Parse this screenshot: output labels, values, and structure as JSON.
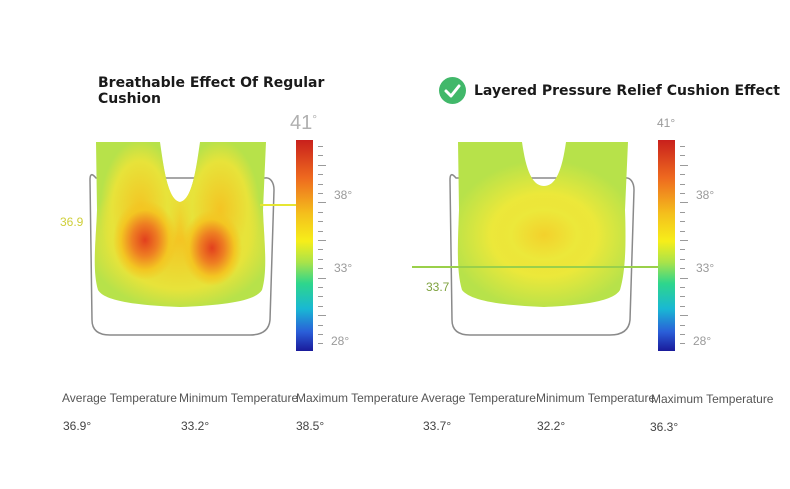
{
  "left": {
    "title_line1": "Breathable Effect Of Regular",
    "title_line2": "Cushion",
    "scale_max": "41",
    "scale_max_deg": "°",
    "scale_labels": [
      "38°",
      "33°",
      "28°"
    ],
    "marker_value": "36.9",
    "marker_color": "#d6d634",
    "stats": [
      {
        "label": "Average Temperature",
        "value": "36.9°"
      },
      {
        "label": "Minimum Temperature",
        "value": "33.2°"
      },
      {
        "label": "Maximum Temperature",
        "value": "38.5°"
      }
    ]
  },
  "right": {
    "title": "Layered Pressure Relief Cushion Effect",
    "check_icon": "check-circle-icon",
    "scale_max": "41°",
    "scale_labels": [
      "38°",
      "33°",
      "28°"
    ],
    "marker_value": "33.7",
    "marker_color": "#8fb84a",
    "stats": [
      {
        "label": "Average Temperature",
        "value": "33.7°"
      },
      {
        "label": "Minimum Temperature",
        "value": "32.2°"
      },
      {
        "label": "Maximum Temperature",
        "value": "36.3°"
      }
    ]
  }
}
